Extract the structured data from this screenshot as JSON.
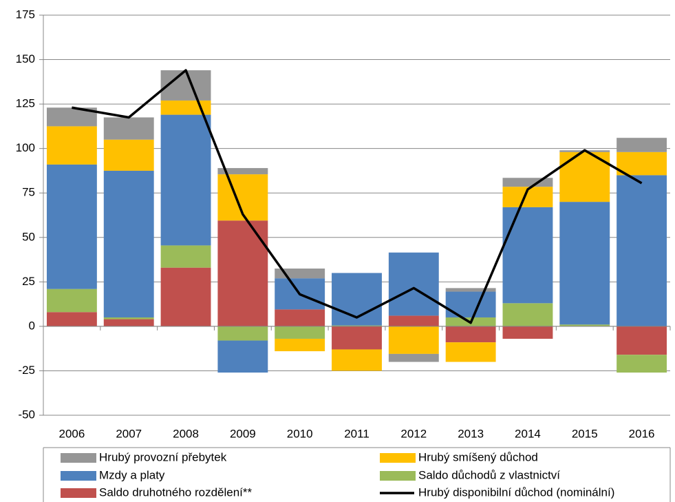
{
  "chart_data": {
    "type": "bar",
    "stacked": true,
    "categories": [
      "2006",
      "2007",
      "2008",
      "2009",
      "2010",
      "2011",
      "2012",
      "2013",
      "2014",
      "2015",
      "2016"
    ],
    "series": [
      {
        "name": "Saldo druhotného rozdělení**",
        "color": "#c0504d",
        "values": [
          8,
          4,
          33,
          59.5,
          9.5,
          -13,
          6,
          -9,
          -7,
          0,
          -16
        ]
      },
      {
        "name": "Saldo důchodů z vlastnictví",
        "color": "#9bbb59",
        "values": [
          13,
          1,
          12.5,
          -8,
          -7,
          0.5,
          0,
          5,
          13,
          1,
          -10
        ]
      },
      {
        "name": "Mzdy a platy",
        "color": "#4f81bd",
        "values": [
          70,
          82.5,
          73.5,
          -18,
          17.5,
          29.5,
          35.5,
          14.5,
          54,
          69,
          85
        ]
      },
      {
        "name": "Hrubý smíšený důchod",
        "color": "#ffc000",
        "values": [
          21.5,
          17.5,
          8,
          26,
          -7,
          -12,
          -15.5,
          -11,
          11.5,
          28,
          13
        ]
      },
      {
        "name": "Hrubý provozní přebytek",
        "color": "#969696",
        "values": [
          10.5,
          12.5,
          17,
          3.5,
          5.5,
          0,
          -4.5,
          2,
          5,
          1,
          8
        ]
      },
      {
        "name": "Hrubý disponibilní důchod (nominální)",
        "color": "#000000",
        "type": "line",
        "values": [
          123,
          117.5,
          144,
          63,
          18,
          5,
          21.5,
          2,
          77,
          99,
          80.5
        ]
      }
    ],
    "ylim": [
      -50,
      175
    ],
    "yticks": [
      -50,
      -25,
      0,
      25,
      50,
      75,
      100,
      125,
      150,
      175
    ],
    "grid": true
  }
}
